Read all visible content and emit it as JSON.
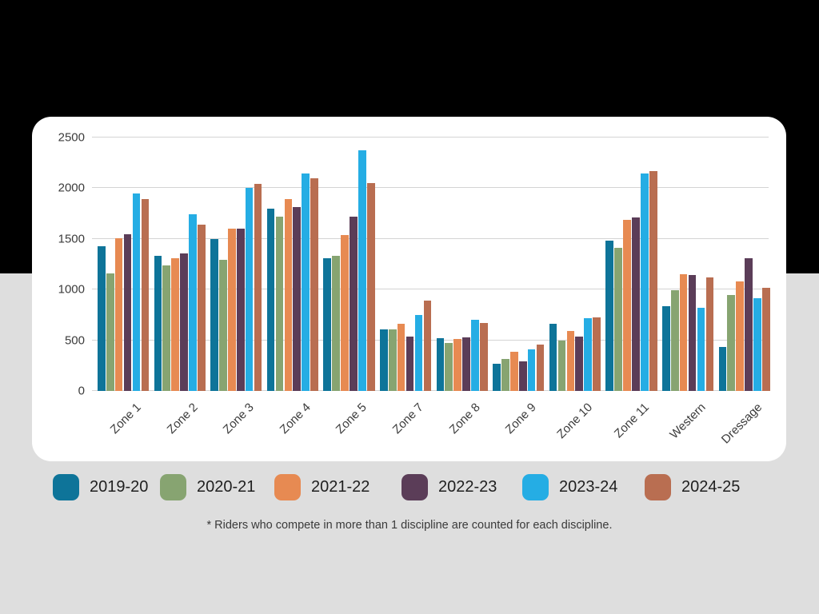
{
  "background": {
    "top_band_color": "#000000",
    "bottom_band_color": "#dedede",
    "card_color": "#ffffff"
  },
  "chart_data": {
    "type": "bar",
    "title": "",
    "xlabel": "",
    "ylabel": "",
    "categories": [
      "Zone 1",
      "Zone 2",
      "Zone 3",
      "Zone 4",
      "Zone 5",
      "Zone 7",
      "Zone 8",
      "Zone 9",
      "Zone 10",
      "Zone 11",
      "Western",
      "Dressage"
    ],
    "series": [
      {
        "name": "2019-20",
        "color": "#0e7499",
        "values": [
          1430,
          1330,
          1500,
          1800,
          1310,
          610,
          520,
          270,
          665,
          1485,
          835,
          430
        ]
      },
      {
        "name": "2020-21",
        "color": "#87a471",
        "values": [
          1160,
          1240,
          1295,
          1720,
          1335,
          605,
          470,
          315,
          500,
          1415,
          990,
          945
        ]
      },
      {
        "name": "2021-22",
        "color": "#e78a52",
        "values": [
          1510,
          1310,
          1600,
          1890,
          1540,
          660,
          510,
          385,
          590,
          1690,
          1150,
          1080
        ]
      },
      {
        "name": "2022-23",
        "color": "#5b3d58",
        "values": [
          1545,
          1355,
          1600,
          1815,
          1720,
          540,
          525,
          295,
          535,
          1715,
          1140,
          1310
        ]
      },
      {
        "name": "2023-24",
        "color": "#25ade4",
        "values": [
          1950,
          1740,
          2000,
          2145,
          2370,
          750,
          705,
          410,
          720,
          2145,
          820,
          915
        ]
      },
      {
        "name": "2024-25",
        "color": "#b96e51",
        "values": [
          1890,
          1640,
          2045,
          2100,
          2050,
          890,
          670,
          460,
          725,
          2165,
          1120,
          1020
        ]
      }
    ],
    "ylim": [
      0,
      2500
    ],
    "yticks": [
      0,
      500,
      1000,
      1500,
      2000,
      2500
    ],
    "grid": "horizontal",
    "gridline_color": "#d4d4d4",
    "legend_position": "bottom"
  },
  "footnote": "* Riders who compete in more than 1 discipline are counted for each discipline."
}
